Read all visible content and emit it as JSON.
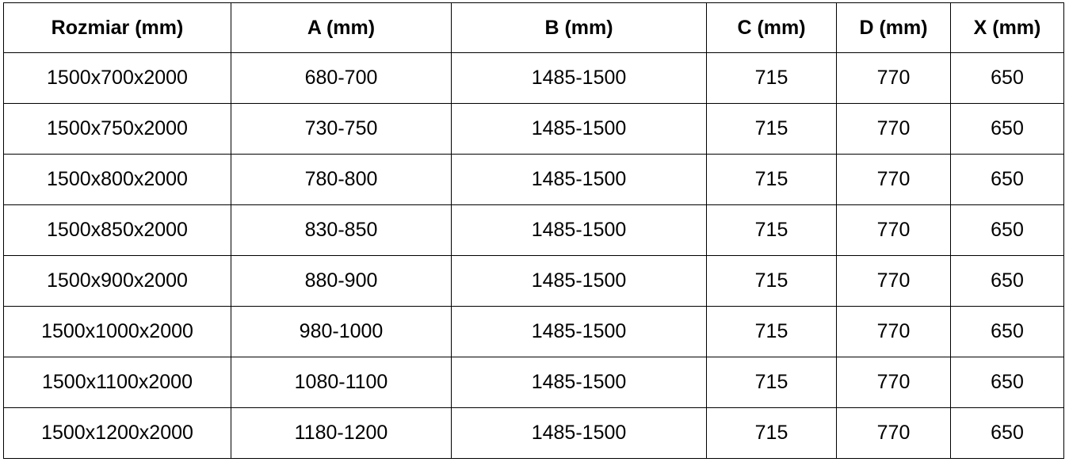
{
  "table": {
    "headers": [
      "Rozmiar (mm)",
      "A (mm)",
      "B (mm)",
      "C (mm)",
      "D (mm)",
      "X (mm)"
    ],
    "rows": [
      [
        "1500x700x2000",
        "680-700",
        "1485-1500",
        "715",
        "770",
        "650"
      ],
      [
        "1500x750x2000",
        "730-750",
        "1485-1500",
        "715",
        "770",
        "650"
      ],
      [
        "1500x800x2000",
        "780-800",
        "1485-1500",
        "715",
        "770",
        "650"
      ],
      [
        "1500x850x2000",
        "830-850",
        "1485-1500",
        "715",
        "770",
        "650"
      ],
      [
        "1500x900x2000",
        "880-900",
        "1485-1500",
        "715",
        "770",
        "650"
      ],
      [
        "1500x1000x2000",
        "980-1000",
        "1485-1500",
        "715",
        "770",
        "650"
      ],
      [
        "1500x1100x2000",
        "1080-1100",
        "1485-1500",
        "715",
        "770",
        "650"
      ],
      [
        "1500x1200x2000",
        "1180-1200",
        "1485-1500",
        "715",
        "770",
        "650"
      ]
    ]
  }
}
